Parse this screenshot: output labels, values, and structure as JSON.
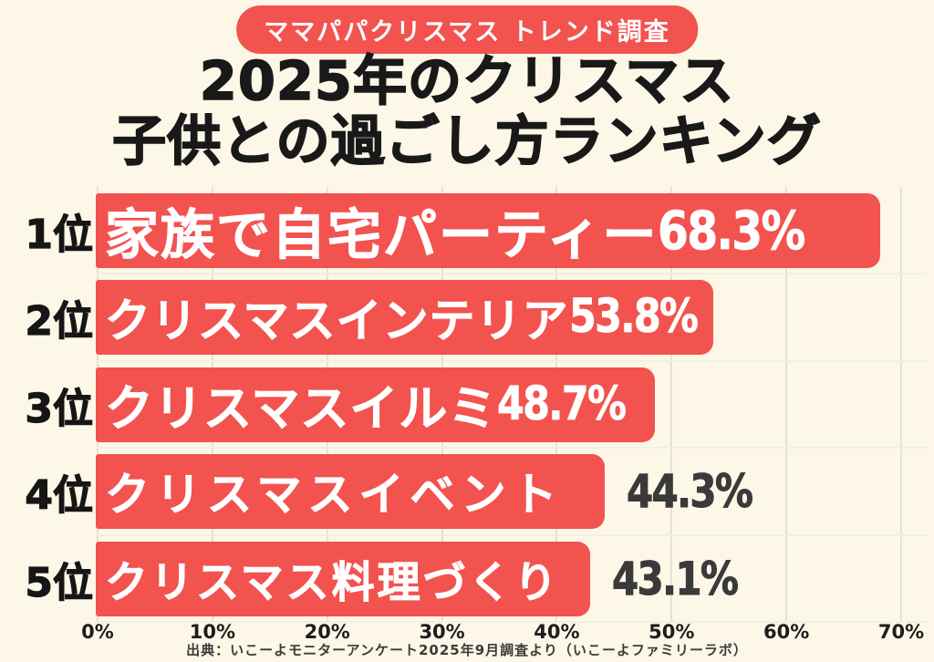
{
  "badge": {
    "label": "ママパパクリスマス トレンド調査"
  },
  "title": {
    "line1": "2025年のクリスマス",
    "line2": "子供との過ごし方ランキング"
  },
  "chart_data": {
    "type": "bar",
    "orientation": "horizontal",
    "title": "2025年のクリスマス 子供との過ごし方ランキング",
    "categories": [
      "家族で自宅パーティー",
      "クリスマスインテリア",
      "クリスマスイルミ",
      "クリスマスイベント",
      "クリスマス料理づくり"
    ],
    "values": [
      68.3,
      53.8,
      48.7,
      44.3,
      43.1
    ],
    "rank_labels": [
      "1位",
      "2位",
      "3位",
      "4位",
      "5位"
    ],
    "value_labels": [
      "68.3%",
      "53.8%",
      "48.7%",
      "44.3%",
      "43.1%"
    ],
    "value_label_position": [
      "inside",
      "inside",
      "inside",
      "outside",
      "outside"
    ],
    "x_ticks": [
      "0%",
      "10%",
      "20%",
      "30%",
      "40%",
      "50%",
      "60%",
      "70%"
    ],
    "xlim": [
      0,
      70
    ],
    "grid": true,
    "legend": "none",
    "bar_color": "#f2534f",
    "bar_text_color": "#ffffff",
    "outside_value_color": "#3a3a3a"
  },
  "colors": {
    "background": "#fcf7e7",
    "accent_red": "#f2534f",
    "title_black": "#191919",
    "gridline": "#e5e1d4"
  },
  "footer": {
    "source": "出典：いこーよモニターアンケート2025年9月調査より（いこーよファミリーラボ）"
  }
}
